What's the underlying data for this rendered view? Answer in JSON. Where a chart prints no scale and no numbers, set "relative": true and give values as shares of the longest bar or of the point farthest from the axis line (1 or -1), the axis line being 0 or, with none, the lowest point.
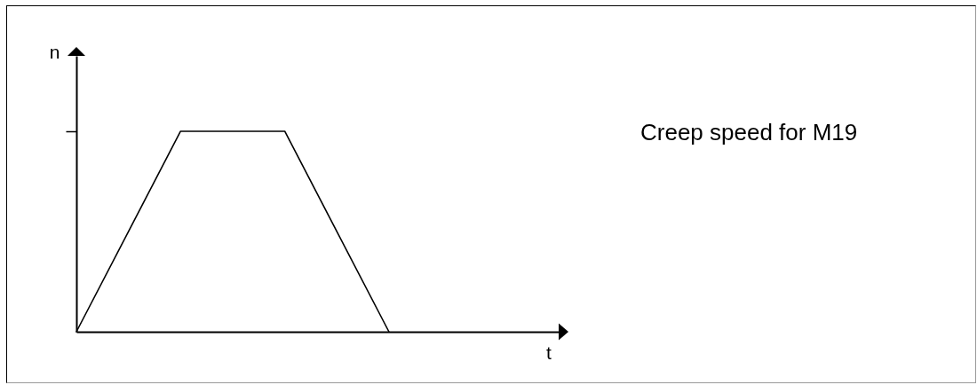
{
  "chart_data": {
    "type": "line",
    "relative": true,
    "categories": [
      null,
      null,
      null,
      null
    ],
    "values": [
      0,
      1,
      1,
      0
    ],
    "color": "#000000",
    "ylabel": "n",
    "annotations": [
      "Creep speed for M19",
      "t"
    ]
  }
}
